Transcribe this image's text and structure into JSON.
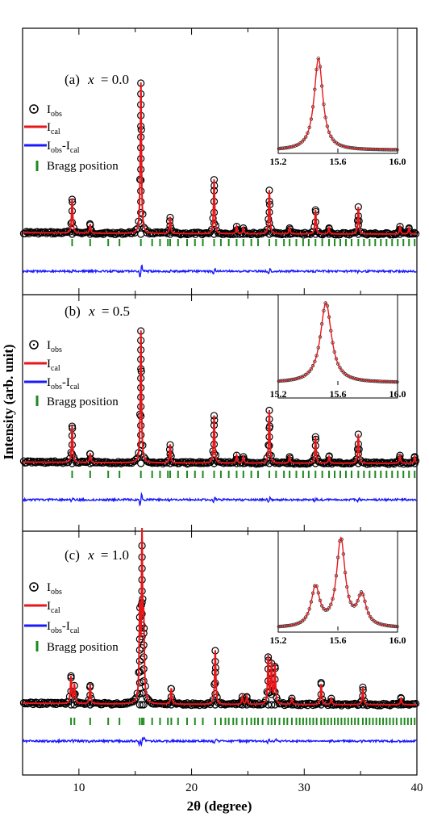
{
  "figure": {
    "xlabel": "2θ (degree)",
    "ylabel": "Intensity (arb. unit)",
    "x_ticks": [
      10,
      20,
      30,
      40
    ],
    "legend": {
      "obs": "I",
      "obs_sub": "obs",
      "cal": "I",
      "cal_sub": "cal",
      "diff": "I",
      "diff_sub1": "obs",
      "diff_sep": "-I",
      "diff_sub2": "cal",
      "bragg": "Bragg position"
    },
    "inset_ticks": [
      "15.2",
      "15.6",
      "16.0"
    ]
  },
  "colors": {
    "observed": "#000000",
    "calculated": "#e8161a",
    "difference": "#1a1aff",
    "bragg": "#1f8a1f"
  },
  "chart_data": [
    {
      "type": "line",
      "panel": "a",
      "label_prefix": "(a)",
      "label_var": "x",
      "label_value": "= 0.0",
      "xlim": [
        5,
        40
      ],
      "peaks": [
        {
          "x": 9.4,
          "h": 0.23
        },
        {
          "x": 11.0,
          "h": 0.06
        },
        {
          "x": 15.5,
          "h": 1.0
        },
        {
          "x": 18.1,
          "h": 0.11
        },
        {
          "x": 22.0,
          "h": 0.36
        },
        {
          "x": 24.0,
          "h": 0.05
        },
        {
          "x": 24.6,
          "h": 0.04
        },
        {
          "x": 26.9,
          "h": 0.29
        },
        {
          "x": 28.7,
          "h": 0.04
        },
        {
          "x": 31.0,
          "h": 0.16
        },
        {
          "x": 32.2,
          "h": 0.04
        },
        {
          "x": 34.8,
          "h": 0.18
        },
        {
          "x": 38.5,
          "h": 0.05
        },
        {
          "x": 39.3,
          "h": 0.04
        }
      ],
      "bragg": [
        9.4,
        11.0,
        12.6,
        13.6,
        15.5,
        16.5,
        17.2,
        17.9,
        18.1,
        18.8,
        19.6,
        20.3,
        21.0,
        22.0,
        22.6,
        23.3,
        24.0,
        24.6,
        25.3,
        25.9,
        26.9,
        27.5,
        28.2,
        28.7,
        29.3,
        29.9,
        30.4,
        31.0,
        31.6,
        32.2,
        32.7,
        33.2,
        33.7,
        34.2,
        34.8,
        35.3,
        35.8,
        36.3,
        36.8,
        37.3,
        37.8,
        38.3,
        38.8,
        39.3,
        39.8
      ],
      "inset": {
        "xlim": [
          15.2,
          16.0
        ],
        "peaks": [
          {
            "x": 15.47,
            "h": 1.0,
            "w": 0.035
          }
        ]
      }
    },
    {
      "type": "line",
      "panel": "b",
      "label_prefix": "(b)",
      "label_var": "x",
      "label_value": "= 0.5",
      "xlim": [
        5,
        40
      ],
      "peaks": [
        {
          "x": 9.4,
          "h": 0.28
        },
        {
          "x": 11.0,
          "h": 0.07
        },
        {
          "x": 15.5,
          "h": 1.0
        },
        {
          "x": 18.1,
          "h": 0.14
        },
        {
          "x": 22.0,
          "h": 0.36
        },
        {
          "x": 24.0,
          "h": 0.06
        },
        {
          "x": 24.6,
          "h": 0.05
        },
        {
          "x": 26.9,
          "h": 0.4
        },
        {
          "x": 28.7,
          "h": 0.05
        },
        {
          "x": 31.0,
          "h": 0.2
        },
        {
          "x": 32.2,
          "h": 0.05
        },
        {
          "x": 34.8,
          "h": 0.22
        },
        {
          "x": 38.5,
          "h": 0.06
        },
        {
          "x": 39.8,
          "h": 0.05
        }
      ],
      "bragg": [
        9.4,
        11.0,
        12.6,
        13.6,
        15.5,
        16.5,
        17.2,
        17.9,
        18.1,
        18.8,
        19.6,
        20.3,
        21.0,
        22.0,
        22.6,
        23.3,
        24.0,
        24.6,
        25.3,
        25.9,
        26.9,
        27.5,
        28.2,
        28.7,
        29.3,
        29.9,
        30.4,
        31.0,
        31.6,
        32.2,
        32.7,
        33.2,
        33.7,
        34.2,
        34.8,
        35.3,
        35.8,
        36.3,
        36.8,
        37.3,
        37.8,
        38.3,
        38.8,
        39.3,
        39.8
      ],
      "inset": {
        "xlim": [
          15.2,
          16.0
        ],
        "peaks": [
          {
            "x": 15.52,
            "h": 1.0,
            "w": 0.045
          }
        ]
      }
    },
    {
      "type": "line",
      "panel": "c",
      "label_prefix": "(c)",
      "label_var": "x",
      "label_value": "= 1.0",
      "xlim": [
        5,
        40
      ],
      "peaks": [
        {
          "x": 9.3,
          "h": 0.17
        },
        {
          "x": 9.6,
          "h": 0.12
        },
        {
          "x": 11.0,
          "h": 0.12
        },
        {
          "x": 15.4,
          "h": 0.55
        },
        {
          "x": 15.6,
          "h": 1.0
        },
        {
          "x": 15.75,
          "h": 0.45
        },
        {
          "x": 18.2,
          "h": 0.1
        },
        {
          "x": 22.1,
          "h": 0.34
        },
        {
          "x": 24.5,
          "h": 0.05
        },
        {
          "x": 24.9,
          "h": 0.05
        },
        {
          "x": 26.8,
          "h": 0.3
        },
        {
          "x": 27.1,
          "h": 0.26
        },
        {
          "x": 27.4,
          "h": 0.24
        },
        {
          "x": 28.9,
          "h": 0.04
        },
        {
          "x": 31.5,
          "h": 0.13
        },
        {
          "x": 32.4,
          "h": 0.04
        },
        {
          "x": 35.2,
          "h": 0.11
        },
        {
          "x": 38.6,
          "h": 0.04
        }
      ],
      "bragg": [
        9.3,
        9.6,
        11.0,
        12.6,
        13.6,
        15.4,
        15.6,
        15.75,
        16.5,
        17.2,
        17.9,
        18.2,
        18.8,
        19.6,
        20.3,
        21.0,
        22.1,
        22.6,
        23.0,
        23.3,
        23.7,
        24.0,
        24.5,
        24.9,
        25.3,
        25.6,
        25.9,
        26.3,
        26.8,
        27.1,
        27.4,
        27.8,
        28.2,
        28.5,
        28.9,
        29.3,
        29.6,
        29.9,
        30.2,
        30.5,
        30.8,
        31.1,
        31.5,
        31.8,
        32.1,
        32.4,
        32.7,
        33.0,
        33.3,
        33.6,
        33.9,
        34.2,
        34.5,
        34.8,
        35.2,
        35.5,
        35.8,
        36.1,
        36.4,
        36.7,
        37.0,
        37.3,
        37.6,
        37.9,
        38.2,
        38.6,
        38.9,
        39.2,
        39.5,
        39.8
      ],
      "inset": {
        "xlim": [
          15.2,
          16.0
        ],
        "peaks": [
          {
            "x": 15.45,
            "h": 0.45,
            "w": 0.035
          },
          {
            "x": 15.62,
            "h": 1.0,
            "w": 0.035
          },
          {
            "x": 15.76,
            "h": 0.35,
            "w": 0.035
          }
        ]
      }
    }
  ]
}
